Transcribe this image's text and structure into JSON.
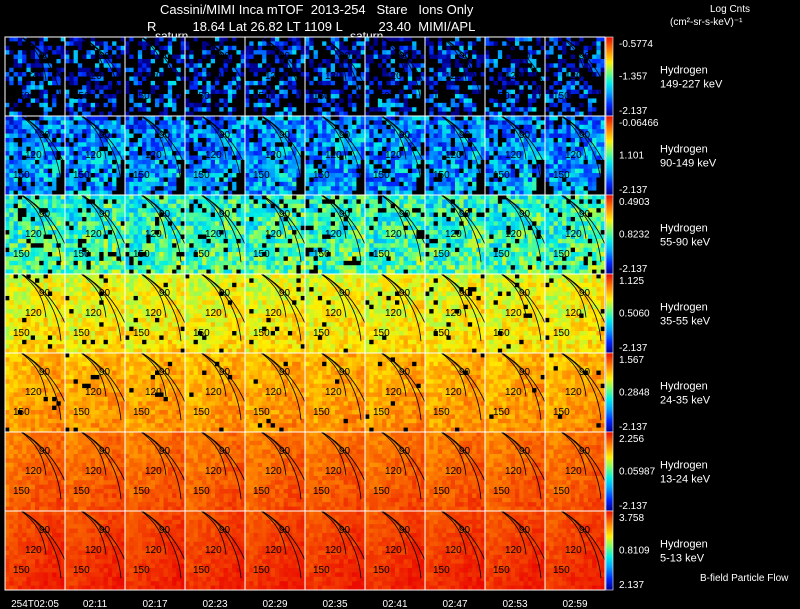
{
  "header": {
    "line1": "Cassini/MIMI Inca mTOF  2013-254   Stare   Ions Only",
    "line2": "R          18.64 Lat 26.82 LT 1109 L          23.40  MIMI/APL"
  },
  "units": {
    "line1": "Log Cnts",
    "line2": "(cm²-sr-s-keV)⁻¹"
  },
  "footer_label": "B-field Particle Flow",
  "planet_labels": [
    "saturn",
    "saturn"
  ],
  "chart_data": {
    "type": "heatmap",
    "time_labels": [
      "254T02:05",
      "02:11",
      "02:17",
      "02:23",
      "02:29",
      "02:35",
      "02:41",
      "02:47",
      "02:53",
      "02:59"
    ],
    "contour_labels": [
      "90",
      "120",
      "150"
    ],
    "rows": [
      {
        "species": "Hydrogen",
        "energy": "149-227 keV",
        "scale_max": "-0.5774",
        "scale_mid": "-1.357",
        "scale_min": "-2.137",
        "base": 0.08,
        "spread": 0.5,
        "mask": 0.5
      },
      {
        "species": "Hydrogen",
        "energy": "90-149 keV",
        "scale_max": "-0.06466",
        "scale_mid": "1.101",
        "scale_min": "-2.137",
        "base": 0.22,
        "spread": 0.35,
        "mask": 0.12
      },
      {
        "species": "Hydrogen",
        "energy": "55-90 keV",
        "scale_max": "0.4903",
        "scale_mid": "0.8232",
        "scale_min": "-2.137",
        "base": 0.42,
        "spread": 0.3,
        "mask": 0.08
      },
      {
        "species": "Hydrogen",
        "energy": "35-55 keV",
        "scale_max": "1.125",
        "scale_mid": "0.5060",
        "scale_min": "-2.137",
        "base": 0.62,
        "spread": 0.16,
        "mask": 0.04
      },
      {
        "species": "Hydrogen",
        "energy": "24-35 keV",
        "scale_max": "1.567",
        "scale_mid": "0.2848",
        "scale_min": "-2.137",
        "base": 0.73,
        "spread": 0.12,
        "mask": 0.02
      },
      {
        "species": "Hydrogen",
        "energy": "13-24 keV",
        "scale_max": "2.256",
        "scale_mid": "0.05987",
        "scale_min": "-2.137",
        "base": 0.82,
        "spread": 0.08,
        "mask": 0.0
      },
      {
        "species": "Hydrogen",
        "energy": "5-13 keV",
        "scale_max": "3.758",
        "scale_mid": "0.8109",
        "scale_min": "2.137",
        "base": 0.88,
        "spread": 0.06,
        "mask": 0.0
      }
    ]
  }
}
